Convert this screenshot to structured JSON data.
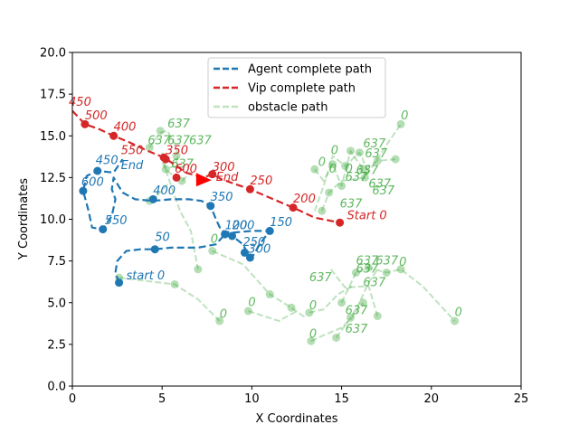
{
  "chart_data": {
    "type": "line",
    "xlabel": "X Coordinates",
    "ylabel": "Y Coordinates",
    "xlim": [
      0,
      25
    ],
    "ylim": [
      0,
      20
    ],
    "xticks": [
      "0",
      "5",
      "10",
      "15",
      "20",
      "25"
    ],
    "yticks": [
      "0.0",
      "2.5",
      "5.0",
      "7.5",
      "10.0",
      "12.5",
      "15.0",
      "17.5",
      "20.0"
    ],
    "grid": false,
    "legend_position": "top-center",
    "legend": [
      {
        "label": "Agent complete path",
        "color": "#1f77b4",
        "style": "dashed"
      },
      {
        "label": "Vip complete path",
        "color": "#d62728",
        "style": "dashed"
      },
      {
        "label": "obstacle path",
        "color": "#2ca02c",
        "style": "dashed-faded"
      }
    ],
    "agent": {
      "color": "#1f77b4",
      "path": [
        [
          2.6,
          6.2
        ],
        [
          2.4,
          6.8
        ],
        [
          2.5,
          7.5
        ],
        [
          3.0,
          8.1
        ],
        [
          3.8,
          8.2
        ],
        [
          4.6,
          8.2
        ],
        [
          5.5,
          8.3
        ],
        [
          7.0,
          8.3
        ],
        [
          8.0,
          8.5
        ],
        [
          8.5,
          9.1
        ],
        [
          8.9,
          9.0
        ],
        [
          9.5,
          8.5
        ],
        [
          9.8,
          7.9
        ],
        [
          10.0,
          7.7
        ],
        [
          10.5,
          8.6
        ],
        [
          11.0,
          9.3
        ],
        [
          10.0,
          9.3
        ],
        [
          8.9,
          9.2
        ],
        [
          8.3,
          9.3
        ],
        [
          8.0,
          10.0
        ],
        [
          7.7,
          10.8
        ],
        [
          7.2,
          11.1
        ],
        [
          6.5,
          11.2
        ],
        [
          5.5,
          11.2
        ],
        [
          4.5,
          11.1
        ],
        [
          3.5,
          11.2
        ],
        [
          2.8,
          11.6
        ],
        [
          2.4,
          12.3
        ],
        [
          2.3,
          12.5
        ],
        [
          2.2,
          11.8
        ],
        [
          2.4,
          11.2
        ],
        [
          2.2,
          10.2
        ],
        [
          1.7,
          9.4
        ],
        [
          1.1,
          9.5
        ],
        [
          0.9,
          10.5
        ],
        [
          0.6,
          11.7
        ],
        [
          0.8,
          12.6
        ],
        [
          1.4,
          12.9
        ],
        [
          2.3,
          12.8
        ],
        [
          2.8,
          13.6
        ]
      ],
      "points": [
        [
          2.6,
          6.2
        ],
        [
          4.6,
          8.2
        ],
        [
          8.5,
          9.1
        ],
        [
          8.9,
          9.0
        ],
        [
          9.6,
          8.0
        ],
        [
          9.9,
          7.7
        ],
        [
          11.0,
          9.3
        ],
        [
          7.7,
          10.8
        ],
        [
          4.5,
          11.2
        ],
        [
          1.7,
          9.4
        ],
        [
          0.6,
          11.7
        ],
        [
          1.4,
          12.9
        ]
      ],
      "labels": [
        {
          "x": 3.0,
          "y": 6.4,
          "text": "start 0"
        },
        {
          "x": 4.6,
          "y": 8.7,
          "text": "50"
        },
        {
          "x": 11.0,
          "y": 9.6,
          "text": "150"
        },
        {
          "x": 8.5,
          "y": 9.4,
          "text": "100"
        },
        {
          "x": 8.9,
          "y": 9.4,
          "text": "200"
        },
        {
          "x": 9.5,
          "y": 8.4,
          "text": "250"
        },
        {
          "x": 9.8,
          "y": 8.0,
          "text": "300"
        },
        {
          "x": 7.7,
          "y": 11.1,
          "text": "350"
        },
        {
          "x": 4.5,
          "y": 11.5,
          "text": "400"
        },
        {
          "x": 1.3,
          "y": 13.3,
          "text": "450"
        },
        {
          "x": 1.8,
          "y": 9.7,
          "text": "550"
        },
        {
          "x": 0.5,
          "y": 12.0,
          "text": "600"
        },
        {
          "x": 2.7,
          "y": 13.0,
          "text": "End"
        }
      ]
    },
    "vip": {
      "color": "#d62728",
      "path": [
        [
          0,
          16.5
        ],
        [
          0.7,
          15.7
        ],
        [
          1.5,
          15.4
        ],
        [
          2.3,
          15.0
        ],
        [
          3.2,
          14.6
        ],
        [
          4.2,
          14.1
        ],
        [
          5.1,
          13.7
        ],
        [
          5.8,
          13.2
        ],
        [
          6.3,
          12.8
        ],
        [
          7.3,
          12.5
        ],
        [
          7.8,
          12.7
        ],
        [
          8.3,
          12.4
        ],
        [
          9.9,
          11.8
        ],
        [
          11.2,
          11.2
        ],
        [
          12.3,
          10.7
        ],
        [
          13.5,
          10.1
        ],
        [
          14.9,
          9.8
        ]
      ],
      "points": [
        [
          0.7,
          15.7
        ],
        [
          2.3,
          15.0
        ],
        [
          5.1,
          13.7
        ],
        [
          5.8,
          12.5
        ],
        [
          7.8,
          12.7
        ],
        [
          9.9,
          11.8
        ],
        [
          12.3,
          10.7
        ],
        [
          14.9,
          9.8
        ],
        [
          5.2,
          13.6
        ]
      ],
      "labels": [
        {
          "x": -0.2,
          "y": 16.8,
          "text": "450"
        },
        {
          "x": 0.7,
          "y": 16.0,
          "text": "500"
        },
        {
          "x": 2.3,
          "y": 15.3,
          "text": "400"
        },
        {
          "x": 2.7,
          "y": 13.9,
          "text": "550"
        },
        {
          "x": 5.2,
          "y": 13.9,
          "text": "350"
        },
        {
          "x": 5.7,
          "y": 12.8,
          "text": "600"
        },
        {
          "x": 7.8,
          "y": 12.9,
          "text": "300"
        },
        {
          "x": 8.0,
          "y": 12.3,
          "text": "End"
        },
        {
          "x": 9.9,
          "y": 12.1,
          "text": "250"
        },
        {
          "x": 12.3,
          "y": 11.0,
          "text": "200"
        },
        {
          "x": 15.3,
          "y": 10.0,
          "text": "Start 0"
        }
      ],
      "arrow": {
        "x": 7.3,
        "y": 12.4
      }
    },
    "obstacles": {
      "color": "#2ca02c",
      "paths": [
        [
          [
            4.3,
            14.3
          ],
          [
            4.9,
            15.2
          ],
          [
            5.3,
            15.3
          ],
          [
            5.7,
            14.5
          ],
          [
            5.9,
            13.8
          ],
          [
            5.7,
            13.2
          ],
          [
            5.2,
            13.0
          ],
          [
            5.0,
            13.4
          ],
          [
            5.4,
            12.8
          ],
          [
            6.1,
            12.3
          ],
          [
            6.6,
            12.8
          ]
        ],
        [
          [
            5.0,
            14.0
          ],
          [
            5.2,
            13.0
          ],
          [
            5.5,
            12.0
          ],
          [
            6.0,
            10.5
          ],
          [
            6.6,
            9.3
          ],
          [
            7.0,
            7.0
          ]
        ],
        [
          [
            4.3,
            11.1
          ],
          [
            4.8,
            11.5
          ],
          [
            5.4,
            12.2
          ]
        ],
        [
          [
            2.6,
            6.5
          ],
          [
            5.7,
            6.1
          ],
          [
            7.0,
            5.2
          ],
          [
            8.2,
            3.9
          ]
        ],
        [
          [
            7.8,
            8.1
          ],
          [
            9.5,
            7.3
          ],
          [
            11.0,
            5.5
          ],
          [
            12.2,
            4.7
          ],
          [
            13.0,
            4.1
          ]
        ],
        [
          [
            9.8,
            4.5
          ],
          [
            11.5,
            3.9
          ],
          [
            12.5,
            4.5
          ]
        ],
        [
          [
            13.5,
            13.0
          ],
          [
            14.0,
            12.3
          ],
          [
            14.5,
            13.3
          ],
          [
            15.0,
            12.0
          ],
          [
            15.5,
            14.1
          ],
          [
            16.2,
            13.0
          ],
          [
            17.0,
            13.5
          ],
          [
            18.0,
            13.6
          ]
        ],
        [
          [
            13.9,
            10.5
          ],
          [
            14.3,
            11.6
          ],
          [
            15.0,
            12.3
          ],
          [
            16.3,
            12.5
          ],
          [
            17.6,
            14.6
          ],
          [
            18.3,
            15.7
          ]
        ],
        [
          [
            13.5,
            10.5
          ],
          [
            14.0,
            12.0
          ],
          [
            14.5,
            13.8
          ],
          [
            15.2,
            13.2
          ],
          [
            16.0,
            14.0
          ],
          [
            16.5,
            12.8
          ]
        ],
        [
          [
            13.3,
            2.7
          ],
          [
            13.9,
            3.0
          ],
          [
            15.0,
            3.5
          ],
          [
            15.5,
            4.0
          ],
          [
            16.2,
            5.0
          ]
        ],
        [
          [
            14.7,
            2.9
          ],
          [
            15.5,
            4.1
          ],
          [
            16.0,
            5.0
          ],
          [
            16.5,
            6.2
          ],
          [
            17.0,
            7.0
          ]
        ],
        [
          [
            15.0,
            5.0
          ],
          [
            15.8,
            6.8
          ],
          [
            16.5,
            7.1
          ],
          [
            17.5,
            6.8
          ],
          [
            18.3,
            7.0
          ],
          [
            19.5,
            6.0
          ],
          [
            21.3,
            3.9
          ]
        ],
        [
          [
            14.4,
            7.0
          ],
          [
            15.2,
            5.9
          ],
          [
            16.5,
            6.0
          ],
          [
            17.0,
            4.2
          ]
        ],
        [
          [
            13.2,
            4.4
          ],
          [
            14.0,
            4.6
          ],
          [
            14.8,
            5.5
          ],
          [
            15.6,
            6.0
          ]
        ]
      ],
      "points": [
        [
          4.3,
          14.3
        ],
        [
          4.9,
          15.3
        ],
        [
          5.8,
          13.8
        ],
        [
          5.2,
          13.0
        ],
        [
          6.1,
          12.3
        ],
        [
          7.0,
          7.0
        ],
        [
          4.3,
          11.1
        ],
        [
          2.6,
          6.5
        ],
        [
          5.7,
          6.1
        ],
        [
          8.2,
          3.9
        ],
        [
          7.8,
          8.1
        ],
        [
          11.0,
          5.5
        ],
        [
          12.2,
          4.7
        ],
        [
          9.8,
          4.5
        ],
        [
          13.3,
          2.7
        ],
        [
          14.7,
          2.9
        ],
        [
          15.5,
          4.1
        ],
        [
          13.2,
          4.4
        ],
        [
          15.0,
          5.0
        ],
        [
          15.8,
          6.8
        ],
        [
          16.5,
          7.1
        ],
        [
          17.5,
          6.8
        ],
        [
          18.3,
          7.0
        ],
        [
          21.3,
          3.9
        ],
        [
          17.0,
          4.2
        ],
        [
          16.2,
          5.0
        ],
        [
          13.5,
          13.0
        ],
        [
          14.5,
          13.3
        ],
        [
          15.0,
          12.0
        ],
        [
          15.5,
          14.1
        ],
        [
          16.2,
          13.0
        ],
        [
          17.0,
          13.5
        ],
        [
          18.0,
          13.6
        ],
        [
          13.9,
          10.5
        ],
        [
          14.3,
          11.6
        ],
        [
          16.3,
          12.5
        ],
        [
          18.3,
          15.7
        ],
        [
          16.0,
          14.0
        ],
        [
          15.2,
          13.2
        ]
      ],
      "labels": [
        {
          "x": 5.3,
          "y": 15.5,
          "text": "637"
        },
        {
          "x": 4.2,
          "y": 14.5,
          "text": "637"
        },
        {
          "x": 5.3,
          "y": 14.5,
          "text": "637"
        },
        {
          "x": 6.5,
          "y": 14.5,
          "text": "637"
        },
        {
          "x": 5.5,
          "y": 13.1,
          "text": "637"
        },
        {
          "x": 7.7,
          "y": 8.6,
          "text": "0"
        },
        {
          "x": 8.2,
          "y": 4.1,
          "text": "0"
        },
        {
          "x": 9.8,
          "y": 4.8,
          "text": "0"
        },
        {
          "x": 13.2,
          "y": 2.9,
          "text": "0"
        },
        {
          "x": 13.2,
          "y": 4.6,
          "text": "0"
        },
        {
          "x": 13.2,
          "y": 6.3,
          "text": "637"
        },
        {
          "x": 15.2,
          "y": 4.3,
          "text": "637"
        },
        {
          "x": 15.2,
          "y": 3.2,
          "text": "637"
        },
        {
          "x": 15.8,
          "y": 6.8,
          "text": "637"
        },
        {
          "x": 16.2,
          "y": 6.0,
          "text": "637"
        },
        {
          "x": 15.8,
          "y": 7.3,
          "text": "637"
        },
        {
          "x": 16.9,
          "y": 7.3,
          "text": "637"
        },
        {
          "x": 18.2,
          "y": 7.2,
          "text": "0"
        },
        {
          "x": 21.3,
          "y": 4.2,
          "text": "0"
        },
        {
          "x": 13.7,
          "y": 13.2,
          "text": "0"
        },
        {
          "x": 14.4,
          "y": 13.9,
          "text": "0"
        },
        {
          "x": 14.3,
          "y": 12.8,
          "text": "0"
        },
        {
          "x": 15.2,
          "y": 12.8,
          "text": "0"
        },
        {
          "x": 16.2,
          "y": 14.3,
          "text": "637"
        },
        {
          "x": 16.3,
          "y": 13.7,
          "text": "637"
        },
        {
          "x": 15.8,
          "y": 12.7,
          "text": "637"
        },
        {
          "x": 16.5,
          "y": 11.9,
          "text": "637"
        },
        {
          "x": 15.2,
          "y": 12.3,
          "text": "637"
        },
        {
          "x": 16.7,
          "y": 11.5,
          "text": "637"
        },
        {
          "x": 18.3,
          "y": 16.0,
          "text": "0"
        },
        {
          "x": 14.9,
          "y": 10.7,
          "text": "637"
        }
      ]
    }
  }
}
